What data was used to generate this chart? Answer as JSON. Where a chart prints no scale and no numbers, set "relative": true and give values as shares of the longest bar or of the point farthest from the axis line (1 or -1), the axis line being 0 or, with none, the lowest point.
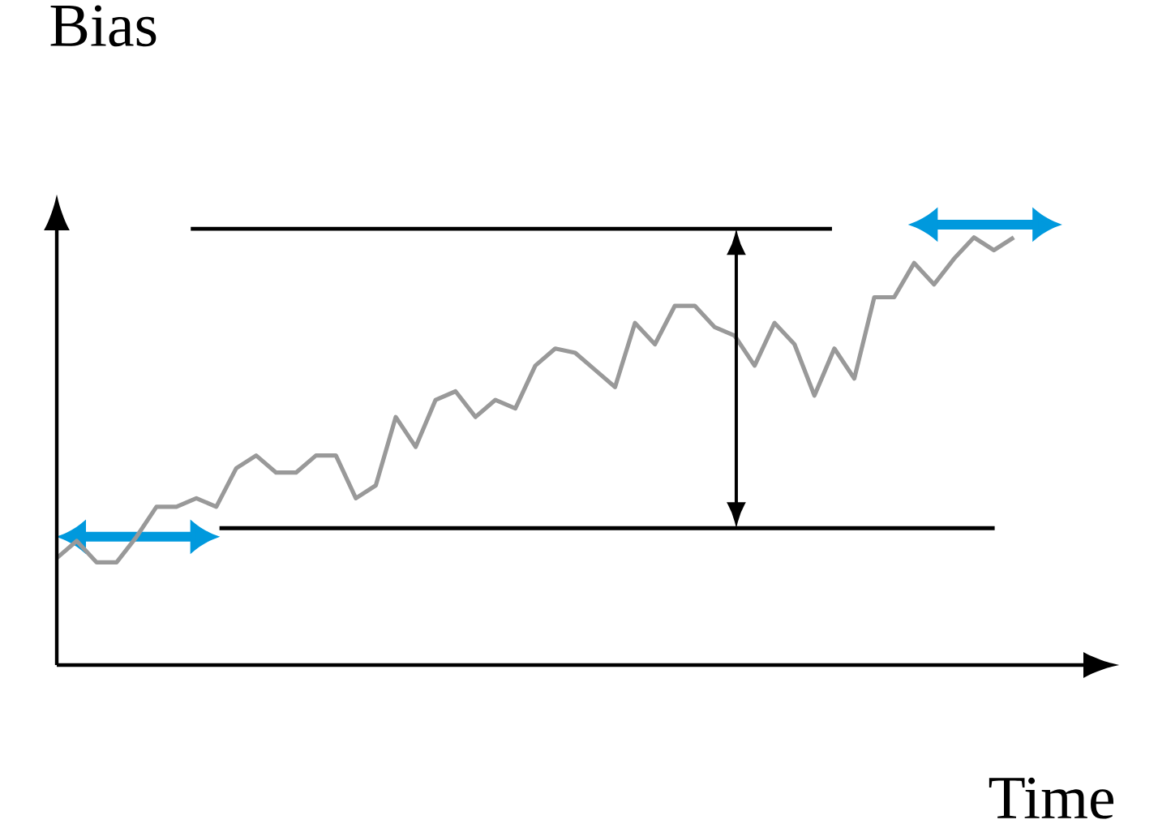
{
  "chart_data": {
    "type": "line",
    "relative": true,
    "xlabel": "Time",
    "ylabel": "Bias",
    "categories": [
      null,
      null,
      null,
      null,
      null,
      null,
      null,
      null,
      null,
      null,
      null,
      null,
      null,
      null,
      null,
      null,
      null,
      null,
      null,
      null,
      null,
      null,
      null,
      null,
      null,
      null,
      null,
      null,
      null,
      null,
      null,
      null,
      null,
      null,
      null,
      null,
      null,
      null,
      null,
      null,
      null,
      null,
      null,
      null,
      null,
      null,
      null,
      null,
      null
    ],
    "series": [
      {
        "color": "#999999",
        "values": [
          0.25,
          0.29,
          0.24,
          0.24,
          0.3,
          0.37,
          0.37,
          0.39,
          0.37,
          0.46,
          0.49,
          0.45,
          0.45,
          0.49,
          0.49,
          0.39,
          0.42,
          0.58,
          0.51,
          0.62,
          0.64,
          0.58,
          0.62,
          0.6,
          0.7,
          0.74,
          0.73,
          0.69,
          0.65,
          0.8,
          0.75,
          0.84,
          0.84,
          0.79,
          0.77,
          0.7,
          0.8,
          0.75,
          0.63,
          0.74,
          0.67,
          0.86,
          0.86,
          0.94,
          0.89,
          0.95,
          1.0,
          0.97,
          1.0
        ]
      }
    ],
    "ref_lines": [
      {
        "axis": "y",
        "value": 1.02,
        "color": "#000000"
      },
      {
        "axis": "y",
        "value": 0.32,
        "color": "#000000"
      }
    ]
  }
}
